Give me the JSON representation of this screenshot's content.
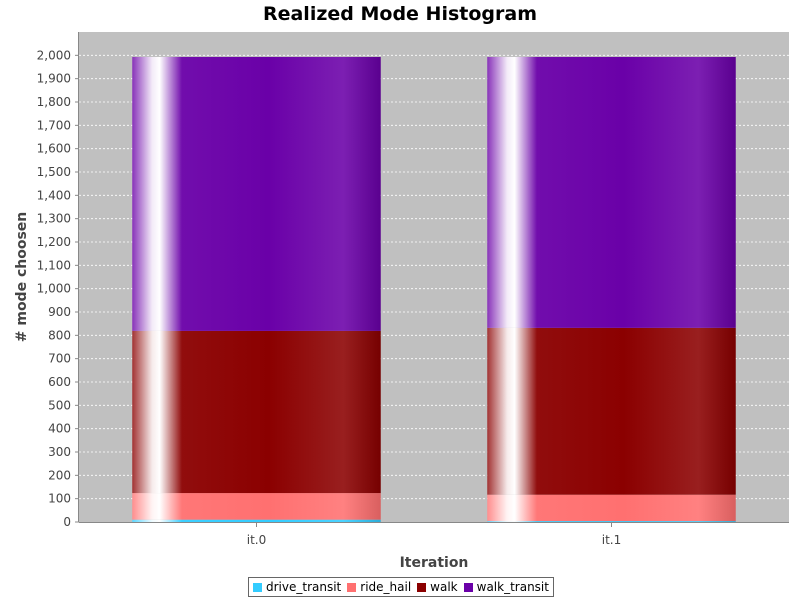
{
  "chart_data": {
    "type": "bar",
    "stacked": true,
    "title": "Realized Mode Histogram",
    "xlabel": "Iteration",
    "ylabel": "# mode choosen",
    "categories": [
      "it.0",
      "it.1"
    ],
    "ylim": [
      0,
      2100
    ],
    "yticks": [
      0,
      100,
      200,
      300,
      400,
      500,
      600,
      700,
      800,
      900,
      1000,
      1100,
      1200,
      1300,
      1400,
      1500,
      1600,
      1700,
      1800,
      1900,
      2000
    ],
    "ytick_labels": [
      "0",
      "100",
      "200",
      "300",
      "400",
      "500",
      "600",
      "700",
      "800",
      "900",
      "1,000",
      "1,100",
      "1,200",
      "1,300",
      "1,400",
      "1,500",
      "1,600",
      "1,700",
      "1,800",
      "1,900",
      "2,000"
    ],
    "grid": true,
    "legend_position": "bottom",
    "series": [
      {
        "name": "drive_transit",
        "color": "#33ccff",
        "values": [
          10,
          4
        ]
      },
      {
        "name": "ride_hail",
        "color": "#ff7070",
        "values": [
          114,
          113
        ]
      },
      {
        "name": "walk",
        "color": "#8b0000",
        "values": [
          695,
          715
        ]
      },
      {
        "name": "walk_transit",
        "color": "#6a00a8",
        "values": [
          1174,
          1161
        ]
      }
    ]
  }
}
